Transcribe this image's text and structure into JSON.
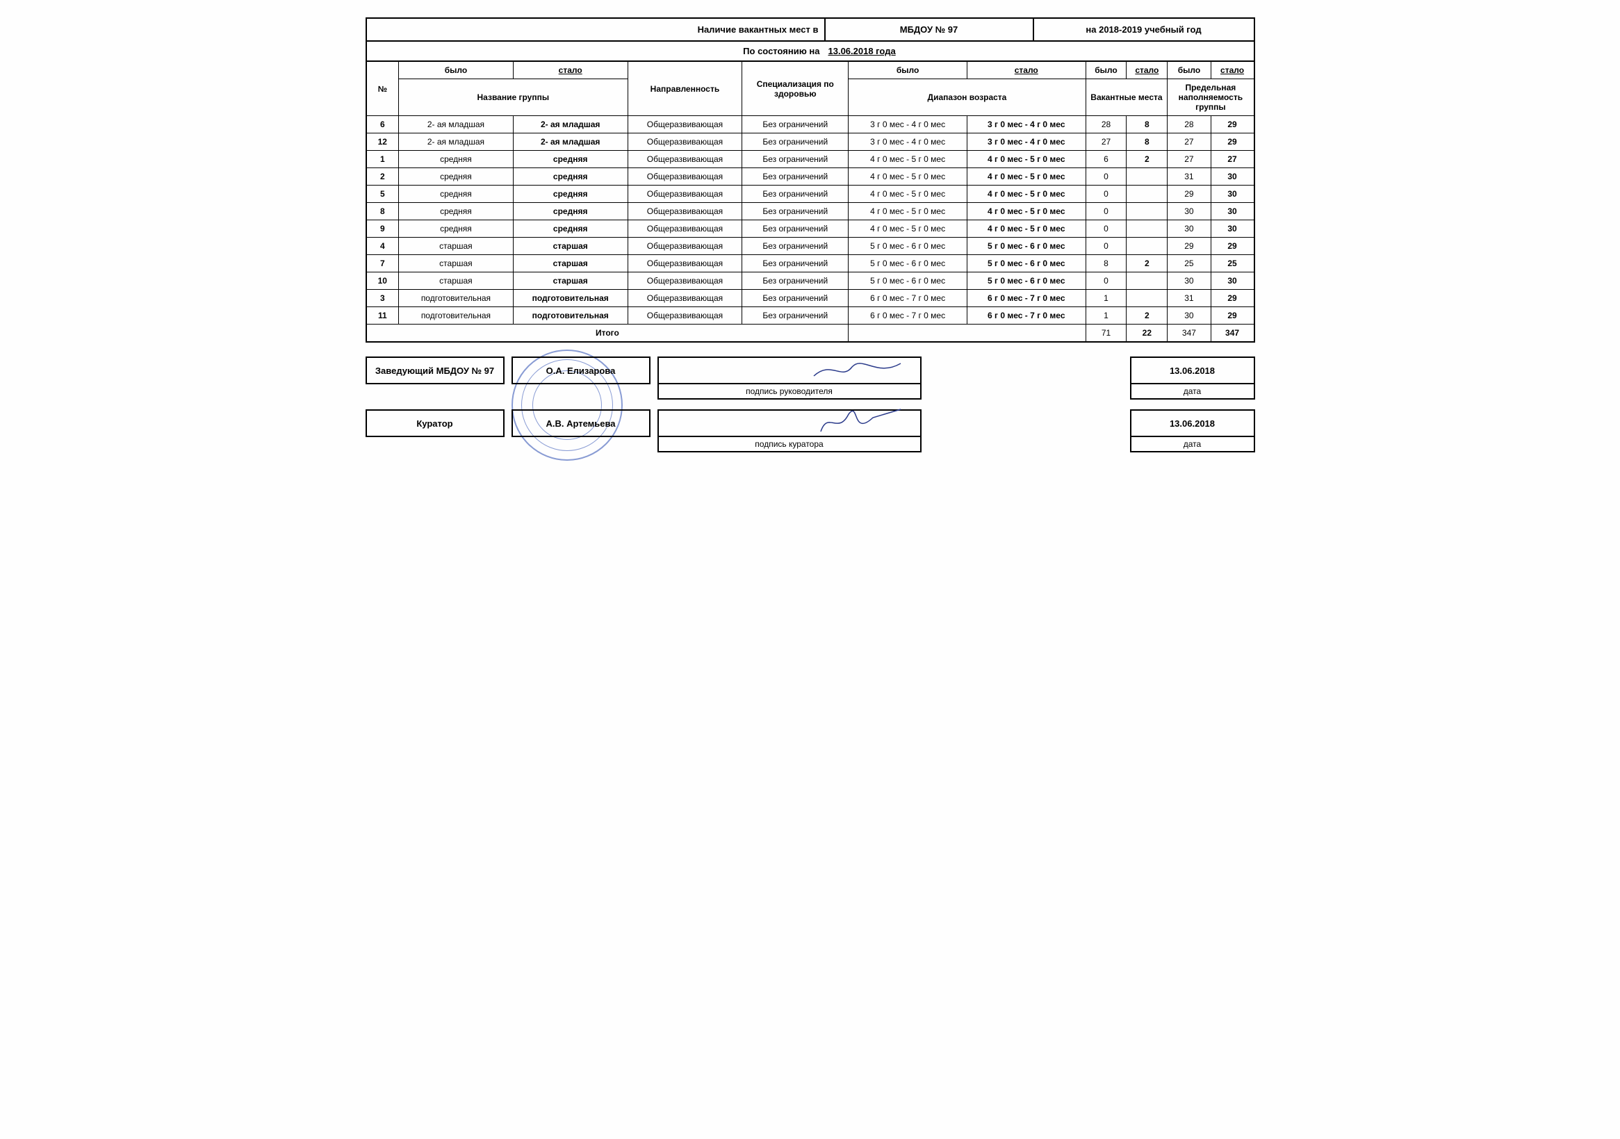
{
  "header": {
    "title_left": "Наличие вакантных мест в",
    "institution": "МБДОУ № 97",
    "year": "на 2018-2019 учебный год",
    "status_label": "По состоянию на",
    "status_date": "13.06.2018 года"
  },
  "columns": {
    "num": "№",
    "was": "было",
    "became": "стало",
    "group_name": "Название группы",
    "direction": "Направленность",
    "specialization": "Специализация по здоровью",
    "age_range": "Диапазон возраста",
    "vacant": "Вакантные места",
    "capacity": "Предельная наполняемость группы"
  },
  "rows": [
    {
      "n": "6",
      "name_was": "2- ая младшая",
      "name_now": "2- ая младшая",
      "dir": "Общеразвивающая",
      "spec": "Без ограничений",
      "age_was": "3 г 0 мес - 4 г 0 мес",
      "age_now": "3 г 0 мес - 4 г 0 мес",
      "vw": "28",
      "vn": "8",
      "cw": "28",
      "cn": "29"
    },
    {
      "n": "12",
      "name_was": "2- ая младшая",
      "name_now": "2- ая младшая",
      "dir": "Общеразвивающая",
      "spec": "Без ограничений",
      "age_was": "3 г 0 мес - 4 г 0 мес",
      "age_now": "3 г 0 мес - 4 г 0 мес",
      "vw": "27",
      "vn": "8",
      "cw": "27",
      "cn": "29"
    },
    {
      "n": "1",
      "name_was": "средняя",
      "name_now": "средняя",
      "dir": "Общеразвивающая",
      "spec": "Без ограничений",
      "age_was": "4 г 0 мес - 5 г 0 мес",
      "age_now": "4 г 0 мес - 5 г 0 мес",
      "vw": "6",
      "vn": "2",
      "cw": "27",
      "cn": "27"
    },
    {
      "n": "2",
      "name_was": "средняя",
      "name_now": "средняя",
      "dir": "Общеразвивающая",
      "spec": "Без ограничений",
      "age_was": "4 г 0 мес - 5 г 0 мес",
      "age_now": "4 г 0 мес - 5 г 0 мес",
      "vw": "0",
      "vn": "",
      "cw": "31",
      "cn": "30"
    },
    {
      "n": "5",
      "name_was": "средняя",
      "name_now": "средняя",
      "dir": "Общеразвивающая",
      "spec": "Без ограничений",
      "age_was": "4 г 0 мес - 5 г 0 мес",
      "age_now": "4 г 0 мес - 5 г 0 мес",
      "vw": "0",
      "vn": "",
      "cw": "29",
      "cn": "30"
    },
    {
      "n": "8",
      "name_was": "средняя",
      "name_now": "средняя",
      "dir": "Общеразвивающая",
      "spec": "Без ограничений",
      "age_was": "4 г 0 мес - 5 г 0 мес",
      "age_now": "4 г 0 мес - 5 г 0 мес",
      "vw": "0",
      "vn": "",
      "cw": "30",
      "cn": "30"
    },
    {
      "n": "9",
      "name_was": "средняя",
      "name_now": "средняя",
      "dir": "Общеразвивающая",
      "spec": "Без ограничений",
      "age_was": "4 г 0 мес - 5 г 0 мес",
      "age_now": "4 г 0 мес - 5 г 0 мес",
      "vw": "0",
      "vn": "",
      "cw": "30",
      "cn": "30"
    },
    {
      "n": "4",
      "name_was": "старшая",
      "name_now": "старшая",
      "dir": "Общеразвивающая",
      "spec": "Без ограничений",
      "age_was": "5 г 0 мес - 6 г 0 мес",
      "age_now": "5 г 0 мес - 6 г 0 мес",
      "vw": "0",
      "vn": "",
      "cw": "29",
      "cn": "29"
    },
    {
      "n": "7",
      "name_was": "старшая",
      "name_now": "старшая",
      "dir": "Общеразвивающая",
      "spec": "Без ограничений",
      "age_was": "5 г 0 мес - 6 г 0 мес",
      "age_now": "5 г 0 мес - 6 г 0 мес",
      "vw": "8",
      "vn": "2",
      "cw": "25",
      "cn": "25"
    },
    {
      "n": "10",
      "name_was": "старшая",
      "name_now": "старшая",
      "dir": "Общеразвивающая",
      "spec": "Без ограничений",
      "age_was": "5 г 0 мес - 6 г 0 мес",
      "age_now": "5 г 0 мес - 6 г 0 мес",
      "vw": "0",
      "vn": "",
      "cw": "30",
      "cn": "30"
    },
    {
      "n": "3",
      "name_was": "подготовительная",
      "name_now": "подготовительная",
      "dir": "Общеразвивающая",
      "spec": "Без ограничений",
      "age_was": "6 г 0 мес - 7 г 0 мес",
      "age_now": "6 г 0 мес - 7 г 0 мес",
      "vw": "1",
      "vn": "",
      "cw": "31",
      "cn": "29"
    },
    {
      "n": "11",
      "name_was": "подготовительная",
      "name_now": "подготовительная",
      "dir": "Общеразвивающая",
      "spec": "Без ограничений",
      "age_was": "6 г 0 мес - 7 г 0 мес",
      "age_now": "6 г 0 мес - 7 г 0 мес",
      "vw": "1",
      "vn": "2",
      "cw": "30",
      "cn": "29"
    }
  ],
  "totals": {
    "label": "Итого",
    "vw": "71",
    "vn": "22",
    "cw": "347",
    "cn": "347"
  },
  "signatures": {
    "head_role": "Заведующий МБДОУ № 97",
    "head_name": "О.А. Елизарова",
    "head_sig_label": "подпись руководителя",
    "curator_role": "Куратор",
    "curator_name": "А.В. Артемьева",
    "curator_sig_label": "подпись куратора",
    "date1": "13.06.2018",
    "date2": "13.06.2018",
    "date_label": "дата"
  }
}
